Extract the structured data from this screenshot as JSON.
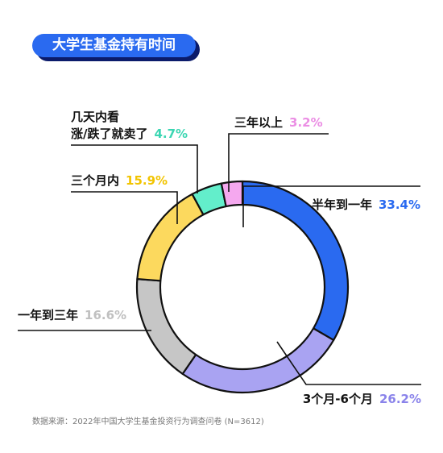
{
  "title": "大学生基金持有时间",
  "source": "数据来源：2022年中国大学生基金投资行为调查问卷 (N=3612)",
  "chart_data": {
    "type": "pie",
    "donut": true,
    "start": "top, clockwise",
    "slices": [
      {
        "label": "半年到一年",
        "label_lines": [
          "半年到一年"
        ],
        "value": 33.4,
        "value_text": "33.4%",
        "color": "#2a6af0",
        "text_color": "#2a6af0"
      },
      {
        "label": "3个月-6个月",
        "label_lines": [
          "3个月-6个月"
        ],
        "value": 26.2,
        "value_text": "26.2%",
        "color": "#a9a3f2",
        "text_color": "#8a83ea"
      },
      {
        "label": "一年到三年",
        "label_lines": [
          "一年到三年"
        ],
        "value": 16.6,
        "value_text": "16.6%",
        "color": "#c6c6c6",
        "text_color": "#c0c0c0"
      },
      {
        "label": "三个月内",
        "label_lines": [
          "三个月内"
        ],
        "value": 15.9,
        "value_text": "15.9%",
        "color": "#fcd95e",
        "text_color": "#f2c400"
      },
      {
        "label": "几天内看涨/跌了就卖了",
        "label_lines": [
          "几天内看",
          "涨/跌了就卖了"
        ],
        "value": 4.7,
        "value_text": "4.7%",
        "color": "#63eecb",
        "text_color": "#3bd6b2"
      },
      {
        "label": "三年以上",
        "label_lines": [
          "三年以上"
        ],
        "value": 3.2,
        "value_text": "3.2%",
        "color": "#f5a8ef",
        "text_color": "#eb8ee4"
      }
    ]
  }
}
